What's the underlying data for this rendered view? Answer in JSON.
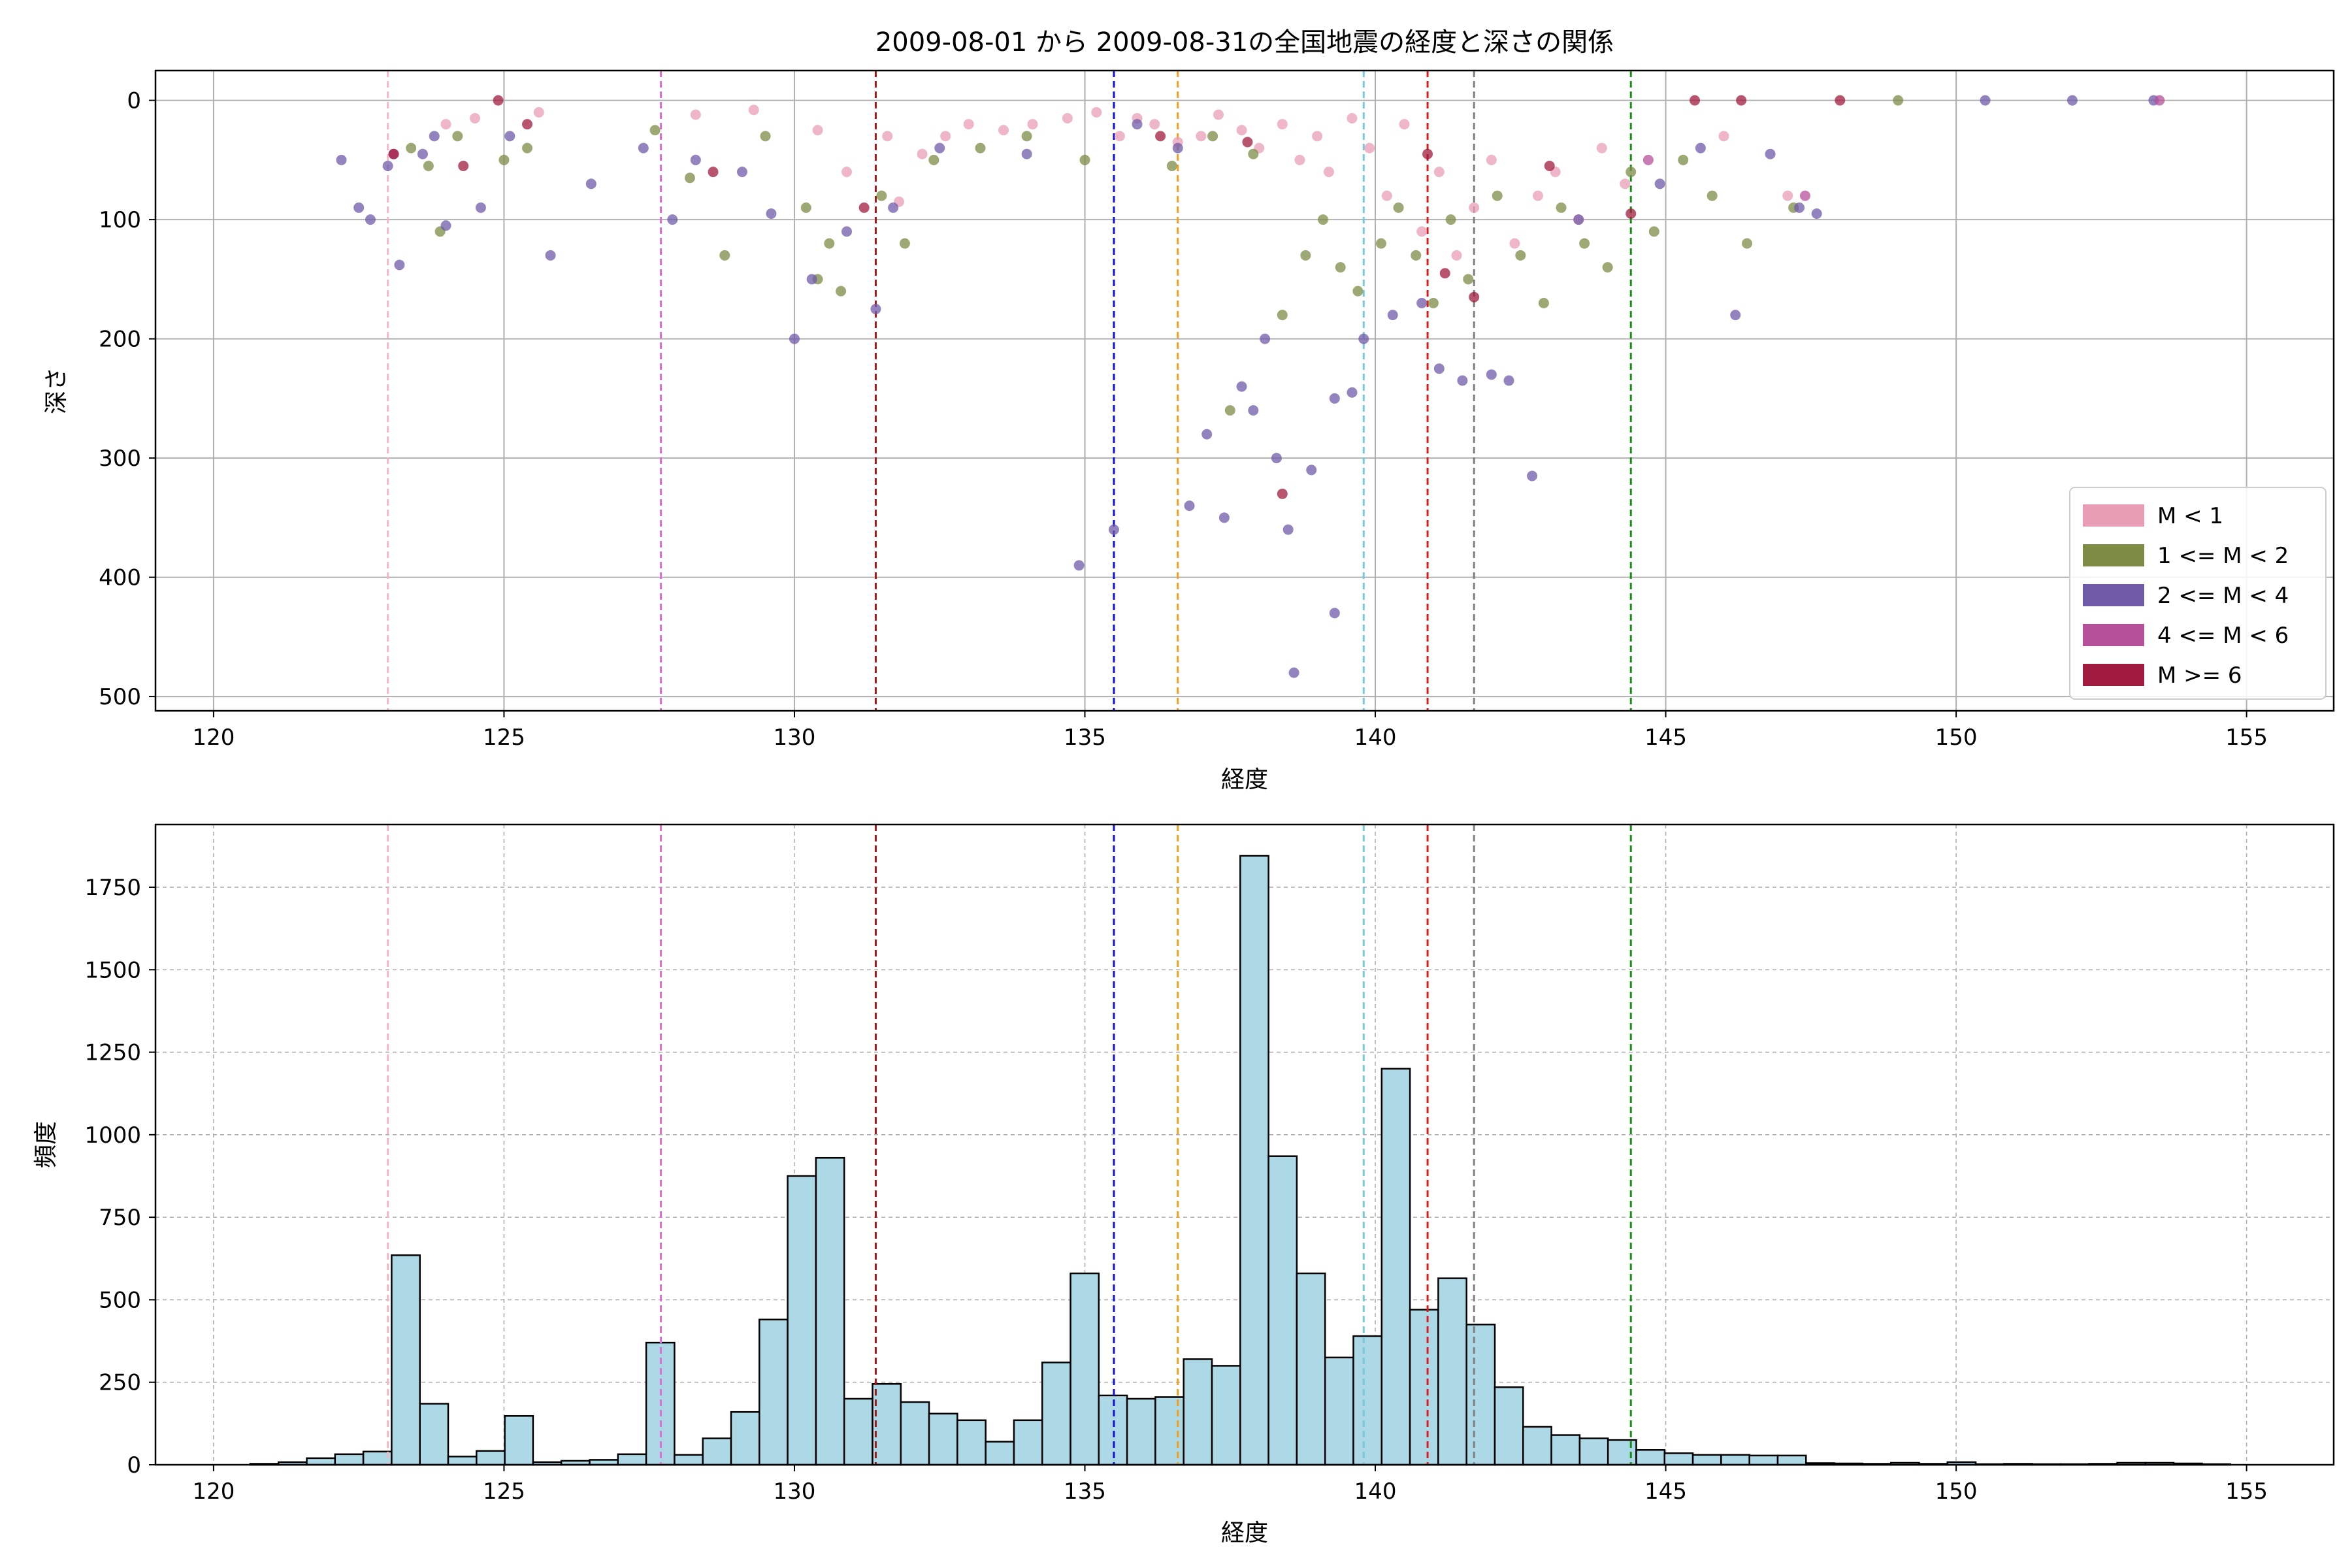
{
  "chart_data": [
    {
      "type": "scatter",
      "title": "2009-08-01 から 2009-08-31の全国地震の経度と深さの関係",
      "xlabel": "経度",
      "ylabel": "深さ",
      "xlim": [
        119,
        156.5
      ],
      "ylim": [
        512,
        -25
      ],
      "y_inverted": true,
      "x_ticks": [
        120,
        125,
        130,
        135,
        140,
        145,
        150,
        155
      ],
      "y_ticks": [
        0,
        100,
        200,
        300,
        400,
        500
      ],
      "grid": true,
      "legend": {
        "placement": "lower-right",
        "entries": [
          {
            "label": "M < 1",
            "color": "#e89db5"
          },
          {
            "label": "1 <= M < 2",
            "color": "#7c8c45"
          },
          {
            "label": "2 <= M < 4",
            "color": "#6f5aa8"
          },
          {
            "label": "4 <= M < 6",
            "color": "#b6509a"
          },
          {
            "label": "M >= 6",
            "color": "#a01b3e"
          }
        ]
      },
      "series": [
        {
          "name": "M < 1",
          "color": "#e89db5",
          "points": [
            [
              124.0,
              20
            ],
            [
              124.5,
              15
            ],
            [
              125.6,
              10
            ],
            [
              128.3,
              12
            ],
            [
              129.3,
              8
            ],
            [
              130.4,
              25
            ],
            [
              130.9,
              60
            ],
            [
              131.6,
              30
            ],
            [
              131.8,
              85
            ],
            [
              132.2,
              45
            ],
            [
              132.6,
              30
            ],
            [
              133.0,
              20
            ],
            [
              133.6,
              25
            ],
            [
              134.1,
              20
            ],
            [
              134.7,
              15
            ],
            [
              135.2,
              10
            ],
            [
              135.6,
              30
            ],
            [
              135.9,
              15
            ],
            [
              136.2,
              20
            ],
            [
              136.6,
              35
            ],
            [
              137.0,
              30
            ],
            [
              137.3,
              12
            ],
            [
              137.7,
              25
            ],
            [
              138.0,
              40
            ],
            [
              138.4,
              20
            ],
            [
              138.7,
              50
            ],
            [
              139.0,
              30
            ],
            [
              139.2,
              60
            ],
            [
              139.6,
              15
            ],
            [
              139.9,
              40
            ],
            [
              140.2,
              80
            ],
            [
              140.5,
              20
            ],
            [
              140.8,
              110
            ],
            [
              141.1,
              60
            ],
            [
              141.4,
              130
            ],
            [
              141.7,
              90
            ],
            [
              142.0,
              50
            ],
            [
              142.4,
              120
            ],
            [
              142.8,
              80
            ],
            [
              143.1,
              60
            ],
            [
              143.5,
              100
            ],
            [
              143.9,
              40
            ],
            [
              144.3,
              70
            ],
            [
              146.0,
              30
            ],
            [
              147.1,
              80
            ]
          ]
        },
        {
          "name": "1 <= M < 2",
          "color": "#7c8c45",
          "points": [
            [
              123.4,
              40
            ],
            [
              123.7,
              55
            ],
            [
              123.9,
              110
            ],
            [
              124.2,
              30
            ],
            [
              125.0,
              50
            ],
            [
              125.4,
              40
            ],
            [
              127.6,
              25
            ],
            [
              128.2,
              65
            ],
            [
              128.8,
              130
            ],
            [
              129.5,
              30
            ],
            [
              130.2,
              90
            ],
            [
              130.4,
              150
            ],
            [
              130.6,
              120
            ],
            [
              130.8,
              160
            ],
            [
              131.5,
              80
            ],
            [
              131.9,
              120
            ],
            [
              132.4,
              50
            ],
            [
              133.2,
              40
            ],
            [
              134.0,
              30
            ],
            [
              135.0,
              50
            ],
            [
              136.5,
              55
            ],
            [
              137.2,
              30
            ],
            [
              137.5,
              260
            ],
            [
              137.9,
              45
            ],
            [
              138.4,
              180
            ],
            [
              138.8,
              130
            ],
            [
              139.1,
              100
            ],
            [
              139.4,
              140
            ],
            [
              139.7,
              160
            ],
            [
              140.1,
              120
            ],
            [
              140.4,
              90
            ],
            [
              140.7,
              130
            ],
            [
              141.0,
              170
            ],
            [
              141.3,
              100
            ],
            [
              141.6,
              150
            ],
            [
              142.1,
              80
            ],
            [
              142.5,
              130
            ],
            [
              142.9,
              170
            ],
            [
              143.2,
              90
            ],
            [
              143.6,
              120
            ],
            [
              144.0,
              140
            ],
            [
              144.4,
              60
            ],
            [
              144.8,
              110
            ],
            [
              145.3,
              50
            ],
            [
              145.8,
              80
            ],
            [
              146.4,
              120
            ],
            [
              147.2,
              90
            ],
            [
              149.0,
              0
            ]
          ]
        },
        {
          "name": "2 <= M < 4",
          "color": "#6f5aa8",
          "points": [
            [
              122.2,
              50
            ],
            [
              122.5,
              90
            ],
            [
              122.7,
              100
            ],
            [
              123.0,
              55
            ],
            [
              123.2,
              138
            ],
            [
              123.6,
              45
            ],
            [
              123.8,
              30
            ],
            [
              124.0,
              105
            ],
            [
              124.6,
              90
            ],
            [
              125.1,
              30
            ],
            [
              125.8,
              130
            ],
            [
              126.5,
              70
            ],
            [
              127.4,
              40
            ],
            [
              127.9,
              100
            ],
            [
              128.3,
              50
            ],
            [
              129.1,
              60
            ],
            [
              129.6,
              95
            ],
            [
              130.0,
              200
            ],
            [
              130.3,
              150
            ],
            [
              130.9,
              110
            ],
            [
              131.4,
              175
            ],
            [
              131.7,
              90
            ],
            [
              132.5,
              40
            ],
            [
              134.0,
              45
            ],
            [
              134.9,
              390
            ],
            [
              135.5,
              360
            ],
            [
              135.9,
              20
            ],
            [
              136.6,
              40
            ],
            [
              136.8,
              340
            ],
            [
              137.1,
              280
            ],
            [
              137.4,
              350
            ],
            [
              137.7,
              240
            ],
            [
              137.9,
              260
            ],
            [
              138.1,
              200
            ],
            [
              138.3,
              300
            ],
            [
              138.5,
              360
            ],
            [
              138.6,
              480
            ],
            [
              138.9,
              310
            ],
            [
              139.3,
              250
            ],
            [
              139.3,
              430
            ],
            [
              139.6,
              245
            ],
            [
              139.8,
              200
            ],
            [
              140.3,
              180
            ],
            [
              140.8,
              170
            ],
            [
              141.1,
              225
            ],
            [
              141.5,
              235
            ],
            [
              142.0,
              230
            ],
            [
              142.3,
              235
            ],
            [
              142.7,
              315
            ],
            [
              143.5,
              100
            ],
            [
              144.9,
              70
            ],
            [
              145.6,
              40
            ],
            [
              146.2,
              180
            ],
            [
              146.8,
              45
            ],
            [
              147.3,
              90
            ],
            [
              147.6,
              95
            ],
            [
              150.5,
              0
            ],
            [
              152.0,
              0
            ],
            [
              153.4,
              0
            ]
          ]
        },
        {
          "name": "4 <= M < 6",
          "color": "#b6509a",
          "points": [
            [
              123.1,
              45
            ],
            [
              144.7,
              50
            ],
            [
              147.4,
              80
            ],
            [
              153.5,
              0
            ]
          ]
        },
        {
          "name": "M >= 6",
          "color": "#a01b3e",
          "points": [
            [
              123.1,
              45
            ],
            [
              124.3,
              55
            ],
            [
              124.9,
              0
            ],
            [
              125.4,
              20
            ],
            [
              128.6,
              60
            ],
            [
              131.2,
              90
            ],
            [
              136.3,
              30
            ],
            [
              137.8,
              35
            ],
            [
              138.4,
              330
            ],
            [
              140.9,
              45
            ],
            [
              141.2,
              145
            ],
            [
              141.7,
              165
            ],
            [
              143.0,
              55
            ],
            [
              144.4,
              95
            ],
            [
              145.5,
              0
            ],
            [
              146.3,
              0
            ],
            [
              148.0,
              0
            ]
          ]
        }
      ],
      "reference_lines_x": [
        {
          "x": 123.0,
          "color": "#f4b6c8"
        },
        {
          "x": 127.7,
          "color": "#e070d8"
        },
        {
          "x": 131.4,
          "color": "#a01818"
        },
        {
          "x": 135.5,
          "color": "#1010e0"
        },
        {
          "x": 136.6,
          "color": "#f0a020"
        },
        {
          "x": 139.8,
          "color": "#78c8d8"
        },
        {
          "x": 140.9,
          "color": "#e01818"
        },
        {
          "x": 141.7,
          "color": "#808080"
        },
        {
          "x": 144.4,
          "color": "#189018"
        }
      ]
    },
    {
      "type": "bar",
      "title": "",
      "xlabel": "経度",
      "ylabel": "頻度",
      "xlim": [
        119,
        156.5
      ],
      "ylim": [
        0,
        1940
      ],
      "x_ticks": [
        120,
        125,
        130,
        135,
        140,
        145,
        150,
        155
      ],
      "y_ticks": [
        0,
        250,
        500,
        750,
        1000,
        1250,
        1500,
        1750
      ],
      "grid": true,
      "bar_color": "#add8e6",
      "bin_start": 120.63,
      "bin_width": 0.487,
      "values": [
        3,
        8,
        20,
        32,
        40,
        635,
        185,
        25,
        42,
        148,
        8,
        12,
        15,
        32,
        370,
        30,
        80,
        160,
        440,
        875,
        930,
        200,
        245,
        190,
        155,
        135,
        70,
        135,
        310,
        580,
        210,
        200,
        205,
        320,
        300,
        1845,
        935,
        580,
        325,
        390,
        1200,
        470,
        565,
        425,
        235,
        115,
        90,
        80,
        75,
        45,
        35,
        30,
        30,
        28,
        28,
        5,
        4,
        3,
        6,
        3,
        8,
        2,
        3,
        2,
        2,
        3,
        6,
        6,
        4,
        2
      ]
    }
  ]
}
